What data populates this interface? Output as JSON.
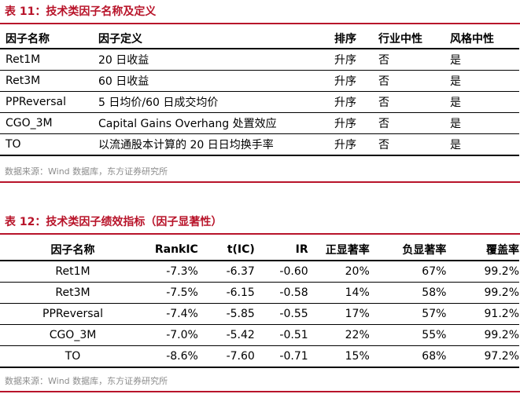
{
  "table11": {
    "title": "表 11：技术类因子名称及定义",
    "headers": [
      "因子名称",
      "因子定义",
      "排序",
      "行业中性",
      "风格中性"
    ],
    "rows": [
      [
        "Ret1M",
        "20 日收益",
        "升序",
        "否",
        "是"
      ],
      [
        "Ret3M",
        "60 日收益",
        "升序",
        "否",
        "是"
      ],
      [
        "PPReversal",
        "5 日均价/60 日成交均价",
        "升序",
        "否",
        "是"
      ],
      [
        "CGO_3M",
        "Capital Gains Overhang  处置效应",
        "升序",
        "否",
        "是"
      ],
      [
        "TO",
        "以流通股本计算的 20 日日均换手率",
        "升序",
        "否",
        "是"
      ]
    ],
    "source": "数据来源：Wind 数据库，东方证券研究所"
  },
  "table12": {
    "title": "表 12：技术类因子绩效指标（因子显著性）",
    "headers": [
      "因子名称",
      "RankIC",
      "t(IC)",
      "IR",
      "正显著率",
      "负显著率",
      "覆盖率"
    ],
    "rows": [
      [
        "Ret1M",
        "-7.3%",
        "-6.37",
        "-0.60",
        "20%",
        "67%",
        "99.2%"
      ],
      [
        "Ret3M",
        "-7.5%",
        "-6.15",
        "-0.58",
        "14%",
        "58%",
        "99.2%"
      ],
      [
        "PPReversal",
        "-7.4%",
        "-5.85",
        "-0.55",
        "17%",
        "57%",
        "91.2%"
      ],
      [
        "CGO_3M",
        "-7.0%",
        "-5.42",
        "-0.51",
        "22%",
        "55%",
        "99.2%"
      ],
      [
        "TO",
        "-8.6%",
        "-7.60",
        "-0.71",
        "15%",
        "68%",
        "97.2%"
      ]
    ],
    "source": "数据来源：Wind 数据库，东方证券研究所"
  },
  "colors": {
    "accent": "#b8142a",
    "source_text": "#8c8c8c"
  }
}
